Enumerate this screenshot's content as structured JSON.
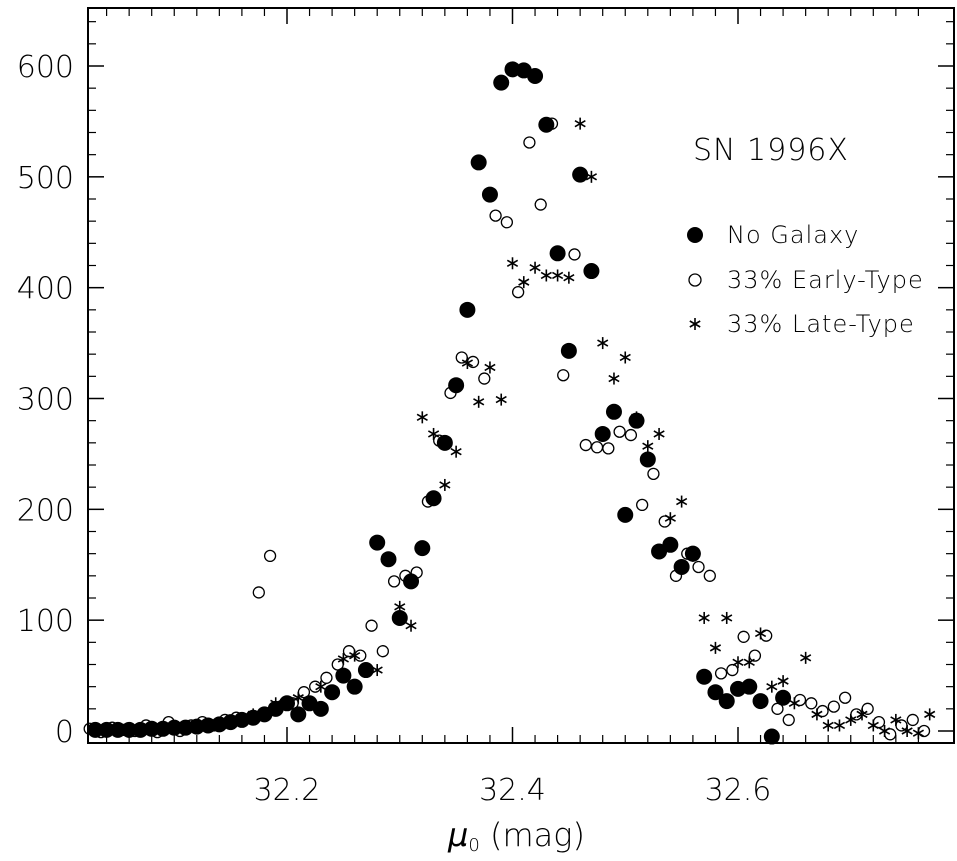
{
  "chart_data": {
    "type": "scatter",
    "title": "",
    "annotation": "SN 1996X",
    "xlabel_symbol": "μ",
    "xlabel_sub": "0",
    "xlabel_unit": " (mag)",
    "ylabel": "",
    "xlim": [
      32.0,
      32.78
    ],
    "ylim": [
      -10,
      650
    ],
    "xticks": [
      32.2,
      32.4,
      32.6
    ],
    "xtick_labels": [
      "32.2",
      "32.4",
      "32.6"
    ],
    "yticks": [
      0,
      100,
      200,
      300,
      400,
      500,
      600
    ],
    "ytick_labels": [
      "0",
      "100",
      "200",
      "300",
      "400",
      "500",
      "600"
    ],
    "grid": false,
    "legend_position": "right",
    "series": [
      {
        "name": "No Galaxy",
        "marker": "filled-circle",
        "color": "#000000",
        "x": [
          32.01,
          32.02,
          32.03,
          32.04,
          32.05,
          32.06,
          32.07,
          32.08,
          32.09,
          32.1,
          32.11,
          32.12,
          32.13,
          32.14,
          32.15,
          32.16,
          32.17,
          32.18,
          32.19,
          32.2,
          32.21,
          32.22,
          32.23,
          32.24,
          32.25,
          32.26,
          32.27,
          32.28,
          32.29,
          32.3,
          32.31,
          32.32,
          32.33,
          32.34,
          32.35,
          32.36,
          32.37,
          32.38,
          32.39,
          32.4,
          32.41,
          32.42,
          32.43,
          32.44,
          32.45,
          32.46,
          32.47,
          32.48,
          32.49,
          32.5,
          32.51,
          32.52,
          32.53,
          32.54,
          32.55,
          32.56,
          32.57,
          32.58,
          32.59,
          32.6,
          32.61,
          32.62,
          32.63,
          32.64
        ],
        "y": [
          1,
          1,
          1,
          1,
          1,
          1,
          1,
          2,
          2,
          3,
          3,
          4,
          5,
          6,
          8,
          10,
          12,
          15,
          20,
          25,
          15,
          25,
          20,
          35,
          50,
          40,
          55,
          170,
          155,
          102,
          135,
          165,
          210,
          260,
          312,
          380,
          513,
          484,
          585,
          597,
          596,
          591,
          547,
          431,
          343,
          502,
          415,
          268,
          288,
          195,
          280,
          245,
          162,
          168,
          148,
          160,
          49,
          35,
          27,
          38,
          40,
          27,
          -5,
          30
        ]
      },
      {
        "name": "33% Early-Type",
        "marker": "open-circle",
        "color": "#000000",
        "x": [
          32.005,
          32.015,
          32.025,
          32.035,
          32.045,
          32.055,
          32.065,
          32.075,
          32.085,
          32.095,
          32.105,
          32.115,
          32.125,
          32.135,
          32.145,
          32.155,
          32.175,
          32.185,
          32.205,
          32.215,
          32.225,
          32.235,
          32.245,
          32.255,
          32.265,
          32.275,
          32.285,
          32.295,
          32.305,
          32.315,
          32.325,
          32.335,
          32.345,
          32.355,
          32.365,
          32.375,
          32.385,
          32.395,
          32.405,
          32.415,
          32.425,
          32.435,
          32.445,
          32.455,
          32.465,
          32.475,
          32.485,
          32.495,
          32.505,
          32.515,
          32.525,
          32.535,
          32.545,
          32.555,
          32.565,
          32.575,
          32.585,
          32.595,
          32.605,
          32.615,
          32.625,
          32.635,
          32.645,
          32.655,
          32.665,
          32.675,
          32.685,
          32.695,
          32.705,
          32.715,
          32.725,
          32.735,
          32.745,
          32.755,
          32.765
        ],
        "y": [
          -2,
          0,
          2,
          -1,
          3,
          1,
          0,
          5,
          -1,
          8,
          0,
          5,
          8,
          5,
          10,
          12,
          125,
          158,
          25,
          35,
          40,
          48,
          60,
          72,
          68,
          95,
          72,
          135,
          140,
          143,
          207,
          262,
          305,
          337,
          333,
          318,
          465,
          459,
          396,
          531,
          475,
          548,
          321,
          430,
          258,
          256,
          255,
          270,
          267,
          204,
          232,
          189,
          140,
          160,
          148,
          140,
          52,
          55,
          85,
          68,
          86,
          20,
          10,
          28,
          25,
          18,
          22,
          30,
          15,
          20,
          8,
          -3,
          5,
          10,
          0
        ]
      },
      {
        "name": "33% Late-Type",
        "marker": "asterisk",
        "color": "#000000",
        "x": [
          32.01,
          32.03,
          32.05,
          32.07,
          32.09,
          32.11,
          32.13,
          32.15,
          32.17,
          32.19,
          32.21,
          32.23,
          32.25,
          32.26,
          32.28,
          32.3,
          32.31,
          32.32,
          32.33,
          32.34,
          32.35,
          32.36,
          32.37,
          32.38,
          32.39,
          32.4,
          32.41,
          32.42,
          32.43,
          32.44,
          32.45,
          32.46,
          32.47,
          32.48,
          32.49,
          32.5,
          32.51,
          32.52,
          32.53,
          32.54,
          32.55,
          32.56,
          32.57,
          32.58,
          32.59,
          32.6,
          32.61,
          32.62,
          32.63,
          32.64,
          32.65,
          32.66,
          32.67,
          32.68,
          32.69,
          32.7,
          32.71,
          32.72,
          32.73,
          32.74,
          32.75,
          32.76,
          32.77
        ],
        "y": [
          0,
          1,
          0,
          2,
          3,
          2,
          5,
          8,
          15,
          25,
          30,
          40,
          65,
          68,
          55,
          112,
          95,
          283,
          268,
          222,
          252,
          332,
          297,
          328,
          299,
          422,
          405,
          418,
          411,
          411,
          409,
          548,
          500,
          350,
          318,
          337,
          283,
          257,
          268,
          192,
          207,
          158,
          102,
          75,
          102,
          62,
          62,
          88,
          40,
          45,
          25,
          66,
          15,
          5,
          5,
          10,
          15,
          5,
          0,
          10,
          0,
          -2,
          15
        ]
      }
    ]
  }
}
